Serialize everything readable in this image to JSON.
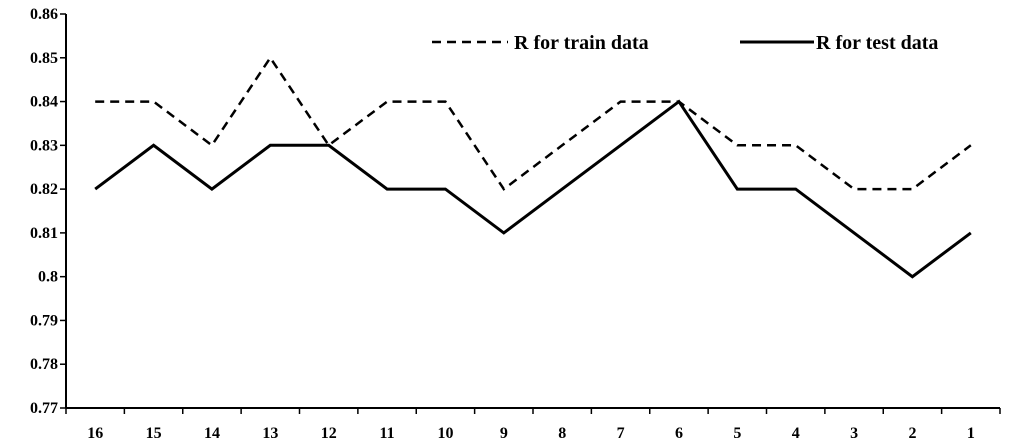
{
  "chart_data": {
    "type": "line",
    "title": "",
    "xlabel": "",
    "ylabel": "",
    "categories": [
      "16",
      "15",
      "14",
      "13",
      "12",
      "11",
      "10",
      "9",
      "8",
      "7",
      "6",
      "5",
      "4",
      "3",
      "2",
      "1"
    ],
    "ylim": [
      0.77,
      0.86
    ],
    "yticks": [
      "0.77",
      "0.78",
      "0.79",
      "0.8",
      "0.81",
      "0.82",
      "0.83",
      "0.84",
      "0.85",
      "0.86"
    ],
    "grid": false,
    "legend_position": "top-right",
    "series": [
      {
        "name": "R for train data",
        "style": "dashed",
        "color": "#000000",
        "values": [
          0.84,
          0.84,
          0.83,
          0.85,
          0.83,
          0.84,
          0.84,
          0.82,
          0.83,
          0.84,
          0.84,
          0.83,
          0.83,
          0.82,
          0.82,
          0.83
        ]
      },
      {
        "name": "R for test data",
        "style": "solid",
        "color": "#000000",
        "values": [
          0.82,
          0.83,
          0.82,
          0.83,
          0.83,
          0.82,
          0.82,
          0.81,
          0.82,
          0.83,
          0.84,
          0.82,
          0.82,
          0.81,
          0.8,
          0.81
        ]
      }
    ]
  }
}
